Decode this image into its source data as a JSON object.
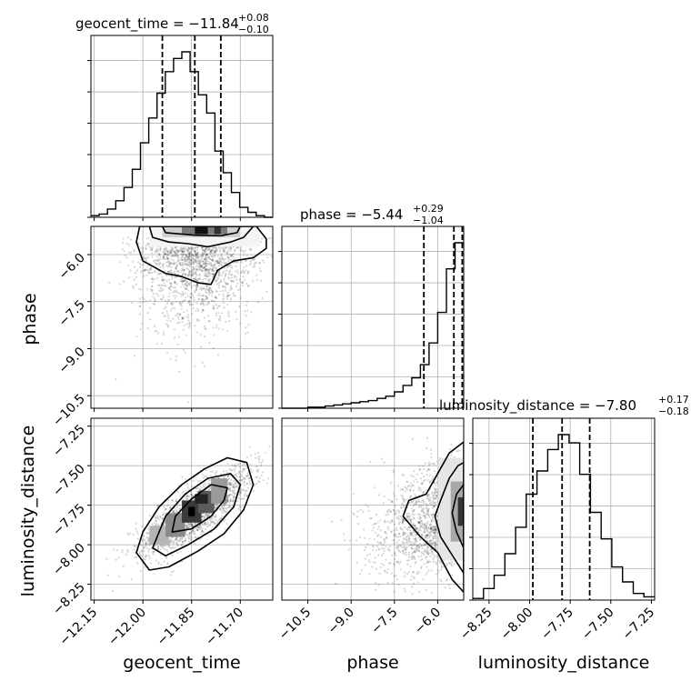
{
  "chart_data": {
    "type": "corner",
    "parameters": [
      "geocent_time",
      "phase",
      "luminosity_distance"
    ],
    "grid": true,
    "diagonal": [
      {
        "name": "geocent_time",
        "title_base": "geocent_time = −11.84",
        "title_sup": "+0.08",
        "title_sub": "−0.10",
        "xlabel": "geocent_time",
        "xlim": [
          -12.16,
          -11.6
        ],
        "xticks": [
          -12.15,
          -12.0,
          -11.85,
          -11.7
        ],
        "xticklabels": [
          "−12.15",
          "−12.00",
          "−11.85",
          "−11.70"
        ],
        "quantiles": [
          -11.94,
          -11.84,
          -11.76
        ],
        "hist_counts": [
          1,
          2,
          5,
          10,
          18,
          29,
          45,
          60,
          75,
          88,
          96,
          100,
          88,
          74,
          63,
          40,
          27,
          15,
          6,
          3,
          1,
          0
        ]
      },
      {
        "name": "phase",
        "title_base": "phase = −5.44",
        "title_sup": "+0.29",
        "title_sub": "−1.04",
        "xlabel": "phase",
        "xlim": [
          -11.4,
          -5.1
        ],
        "xticks": [
          -10.5,
          -9.0,
          -7.5,
          -6.0
        ],
        "xticklabels": [
          "−10.5",
          "−9.0",
          "−7.5",
          "−6.0"
        ],
        "quantiles": [
          -6.48,
          -5.44,
          -5.15
        ],
        "hist_counts": [
          0,
          0,
          0,
          0.5,
          0.5,
          1,
          1.5,
          2,
          2.5,
          3,
          3.5,
          4.5,
          5.5,
          7.5,
          10.5,
          14,
          20,
          30,
          44,
          64,
          76
        ]
      },
      {
        "name": "luminosity_distance",
        "title_base": "luminosity_distance = −7.80",
        "title_sup": "+0.17",
        "title_sub": "−0.18",
        "xlabel": "luminosity_distance",
        "xlim": [
          -8.35,
          -7.23
        ],
        "xticks": [
          -8.25,
          -8.0,
          -7.75,
          -7.5,
          -7.25
        ],
        "xticklabels": [
          "−8.25",
          "−8.00",
          "−7.75",
          "−7.50",
          "−7.25"
        ],
        "quantiles": [
          -7.98,
          -7.8,
          -7.63
        ],
        "hist_counts": [
          1,
          7,
          15,
          28,
          44,
          64,
          78,
          91,
          100,
          95,
          76,
          53,
          37,
          20,
          11,
          4,
          2
        ]
      }
    ],
    "pairs": [
      {
        "x": "geocent_time",
        "y": "phase",
        "ylim": [
          -10.9,
          -5.1
        ],
        "yticks": [
          -6.0,
          -7.5,
          -9.0,
          -10.5
        ],
        "yticklabels": [
          "−6.0",
          "−7.5",
          "−9.0",
          "−10.5"
        ],
        "ylabel": "phase"
      },
      {
        "x": "geocent_time",
        "y": "luminosity_distance",
        "ylim": [
          -8.35,
          -7.2
        ],
        "yticks": [
          -7.25,
          -7.5,
          -7.75,
          -8.0,
          -8.25
        ],
        "yticklabels": [
          "−7.25",
          "−7.50",
          "−7.75",
          "−8.00",
          "−8.25"
        ],
        "ylabel": "luminosity_distance"
      },
      {
        "x": "phase",
        "y": "luminosity_distance",
        "ylim": [
          -8.35,
          -7.2
        ]
      }
    ]
  }
}
